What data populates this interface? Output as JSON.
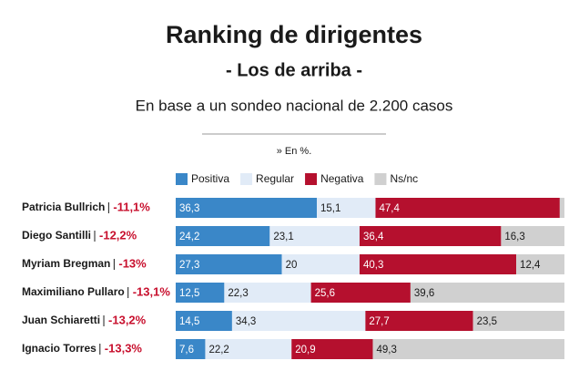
{
  "chart_data": {
    "type": "stacked-bar",
    "orientation": "horizontal",
    "title": "Ranking de dirigentes",
    "subtitle": "- Los de arriba -",
    "description": "En base a un sondeo nacional de 2.200 casos",
    "note": "» En %.",
    "categories": [
      "Patricia Bullrich",
      "Diego Santilli",
      "Myriam Bregman",
      "Maximiliano Pullaro",
      "Juan Schiaretti",
      "Ignacio Torres"
    ],
    "category_notes": [
      "-11,1%",
      "-12,2%",
      "-13%",
      "-13,1%",
      "-13,2%",
      "-13,3%"
    ],
    "xlim": [
      0,
      100
    ],
    "series": [
      {
        "name": "Positiva",
        "color": "#3a87c8",
        "values": [
          36.3,
          24.2,
          27.3,
          12.5,
          14.5,
          7.6
        ],
        "value_labels": [
          "36,3",
          "24,2",
          "27,3",
          "12,5",
          "14,5",
          "7,6"
        ]
      },
      {
        "name": "Regular",
        "color": "#e1ebf7",
        "values": [
          15.1,
          23.1,
          20,
          22.3,
          34.3,
          22.2
        ],
        "value_labels": [
          "15,1",
          "23,1",
          "20",
          "22,3",
          "34,3",
          "22,2"
        ]
      },
      {
        "name": "Negativa",
        "color": "#b5102e",
        "values": [
          47.4,
          36.4,
          40.3,
          25.6,
          27.7,
          20.9
        ],
        "value_labels": [
          "47,4",
          "36,4",
          "40,3",
          "25,6",
          "27,7",
          "20,9"
        ]
      },
      {
        "name": "Ns/nc",
        "color": "#d0d0d0",
        "values": [
          1.2,
          16.3,
          12.4,
          39.6,
          23.5,
          49.3
        ],
        "value_labels": [
          null,
          "16,3",
          "12,4",
          "39,6",
          "23,5",
          "49,3"
        ]
      }
    ]
  }
}
